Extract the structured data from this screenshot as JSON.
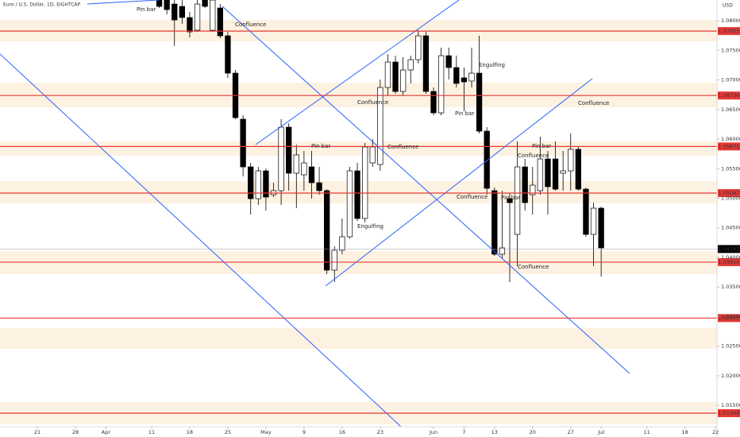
{
  "chart_data": {
    "type": "candlestick",
    "title": "Euro / U.S. Dollar, 1D, EIGHTCAP",
    "currency": "USD",
    "up_color": "#ffffff",
    "down_color": "#000000",
    "level_color": "#e53935",
    "zone_color": "#fdf1e1",
    "x": [
      16,
      17,
      18,
      19,
      20,
      21,
      22,
      23,
      24,
      25,
      26,
      27,
      28,
      29,
      30,
      31,
      32,
      33,
      34,
      35,
      36,
      37,
      38,
      39,
      40,
      41,
      42,
      43,
      44,
      45,
      46,
      47,
      48,
      49,
      50,
      51,
      52,
      53,
      54,
      55,
      56,
      57,
      58,
      59,
      60,
      61,
      62,
      63,
      64,
      65,
      66,
      67,
      68,
      69,
      70,
      71,
      72,
      73,
      74
    ],
    "open": [
      1.08416,
      1.08349,
      1.08282,
      1.08242,
      1.08054,
      1.07839,
      1.08349,
      1.07839,
      1.08215,
      1.07745,
      1.07114,
      1.06336,
      1.0553,
      1.04993,
      1.05463,
      1.0506,
      1.05128,
      1.06201,
      1.05423,
      1.05396,
      1.0553,
      1.05262,
      1.05128,
      1.03785,
      1.04121,
      1.04349,
      1.05463,
      1.04658,
      1.05597,
      1.0557,
      1.06872,
      1.07302,
      1.06805,
      1.07168,
      1.07342,
      1.07745,
      1.06805,
      1.06443,
      1.07409,
      1.07208,
      1.07034,
      1.0698,
      1.07114,
      1.06134,
      1.05128,
      1.04054,
      1.04993,
      1.04389,
      1.0553,
      1.0506,
      1.05128,
      1.05664,
      1.05664,
      1.05423,
      1.05463,
      1.05826,
      1.05154,
      1.04389,
      1.04832
    ],
    "high": [
      1.0855,
      1.08416,
      1.08349,
      1.08349,
      1.08148,
      1.08416,
      1.08416,
      1.08483,
      1.08282,
      1.07812,
      1.07168,
      1.06403,
      1.05597,
      1.0553,
      1.05503,
      1.05262,
      1.06336,
      1.06268,
      1.05906,
      1.05799,
      1.05799,
      1.0553,
      1.05154,
      1.04188,
      1.04658,
      1.0553,
      1.05597,
      1.05933,
      1.06,
      1.07007,
      1.07436,
      1.07409,
      1.07383,
      1.07409,
      1.07839,
      1.07812,
      1.06872,
      1.07544,
      1.07544,
      1.07409,
      1.07208,
      1.07544,
      1.07745,
      1.06201,
      1.05181,
      1.05128,
      1.05087,
      1.0596,
      1.05664,
      1.0553,
      1.0604,
      1.05799,
      1.0596,
      1.05799,
      1.06094,
      1.05866,
      1.05181,
      1.04926,
      1.04859
    ],
    "low": [
      1.08215,
      1.08107,
      1.0757,
      1.07946,
      1.07718,
      1.07812,
      1.08215,
      1.07812,
      1.07705,
      1.07034,
      1.06336,
      1.05369,
      1.04725,
      1.04886,
      1.04792,
      1.0502,
      1.04886,
      1.05128,
      1.04832,
      1.05128,
      1.04993,
      1.0506,
      1.03718,
      1.03584,
      1.04054,
      1.04322,
      1.04617,
      1.04591,
      1.0553,
      1.05463,
      1.06738,
      1.06765,
      1.06738,
      1.0694,
      1.07275,
      1.06765,
      1.06403,
      1.06403,
      1.07007,
      1.06872,
      1.0647,
      1.06872,
      1.06094,
      1.0506,
      1.04027,
      1.03987,
      1.03584,
      1.03852,
      1.04792,
      1.04725,
      1.0506,
      1.04725,
      1.05128,
      1.05128,
      1.05128,
      1.05128,
      1.04349,
      1.03852,
      1.03678
    ],
    "close": [
      1.08242,
      1.08188,
      1.08013,
      1.08054,
      1.07812,
      1.08282,
      1.08242,
      1.08349,
      1.07745,
      1.07114,
      1.06362,
      1.0553,
      1.04993,
      1.05463,
      1.0502,
      1.05128,
      1.06201,
      1.05423,
      1.05732,
      1.05597,
      1.05262,
      1.05128,
      1.03785,
      1.04121,
      1.04349,
      1.05463,
      1.04658,
      1.05866,
      1.05866,
      1.06872,
      1.07302,
      1.06805,
      1.07168,
      1.07342,
      1.07745,
      1.06805,
      1.06443,
      1.07409,
      1.07208,
      1.0694,
      1.06966,
      1.07114,
      1.06134,
      1.05168,
      1.04054,
      1.04161,
      1.04926,
      1.0553,
      1.04926,
      1.05221,
      1.05664,
      1.05195,
      1.05154,
      1.05463,
      1.05826,
      1.05154,
      1.04389,
      1.04832,
      1.04161
    ],
    "xlim": [
      -4.9,
      89.2
    ],
    "xticks": [
      {
        "value": 0,
        "label": "21"
      },
      {
        "value": 5,
        "label": "28"
      },
      {
        "value": 9,
        "label": "Apr"
      },
      {
        "value": 15,
        "label": "11"
      },
      {
        "value": 20,
        "label": "18"
      },
      {
        "value": 25,
        "label": "25"
      },
      {
        "value": 30,
        "label": "May"
      },
      {
        "value": 35,
        "label": "9"
      },
      {
        "value": 40,
        "label": "16"
      },
      {
        "value": 45,
        "label": "23"
      },
      {
        "value": 52,
        "label": "Jun"
      },
      {
        "value": 56,
        "label": "7"
      },
      {
        "value": 60,
        "label": "13"
      },
      {
        "value": 65,
        "label": "20"
      },
      {
        "value": 70,
        "label": "27"
      },
      {
        "value": 74,
        "label": "Jul"
      },
      {
        "value": 80,
        "label": "11"
      },
      {
        "value": 85,
        "label": "18"
      },
      {
        "value": 89,
        "label": "22"
      }
    ],
    "ylim": [
      1.0114,
      1.0835
    ],
    "yticks": [
      {
        "value": 1.015,
        "label": "1.01500"
      },
      {
        "value": 1.02,
        "label": "1.02000"
      },
      {
        "value": 1.025,
        "label": "1.02500"
      },
      {
        "value": 1.03,
        "label": "1.03000"
      },
      {
        "value": 1.035,
        "label": "1.03500"
      },
      {
        "value": 1.04,
        "label": "1.04000"
      },
      {
        "value": 1.045,
        "label": "1.04500"
      },
      {
        "value": 1.05,
        "label": "1.05000"
      },
      {
        "value": 1.055,
        "label": "1.05500"
      },
      {
        "value": 1.06,
        "label": "1.06000"
      },
      {
        "value": 1.065,
        "label": "1.06500"
      },
      {
        "value": 1.07,
        "label": "1.07000"
      },
      {
        "value": 1.075,
        "label": "1.07500"
      },
      {
        "value": 1.08,
        "label": "1.08000"
      }
    ],
    "levels": [
      1.07825,
      1.06736,
      1.05875,
      1.05087,
      {
        "value": 1.0392,
        "label": "1.03920"
      },
      1.02975,
      1.01368
    ],
    "zones": [
      [
        1.07651,
        1.08013
      ],
      [
        1.06537,
        1.06953
      ],
      [
        1.05718,
        1.0596
      ],
      [
        1.04913,
        1.05289
      ],
      [
        1.03718,
        1.04107
      ],
      [
        1.02456,
        1.02805
      ],
      [
        1.01181,
        1.01557
      ]
    ],
    "current_price": 1.04142,
    "annotations": [
      "Pin bar",
      "Confluence",
      "Confluence",
      "Pin bar",
      "Confluence",
      "Engulfing",
      "Engulfing",
      "Pin bar",
      "Confluence",
      "Pin bar",
      "Confluence",
      "Confluence",
      "Pin bar",
      "Confluence"
    ]
  }
}
